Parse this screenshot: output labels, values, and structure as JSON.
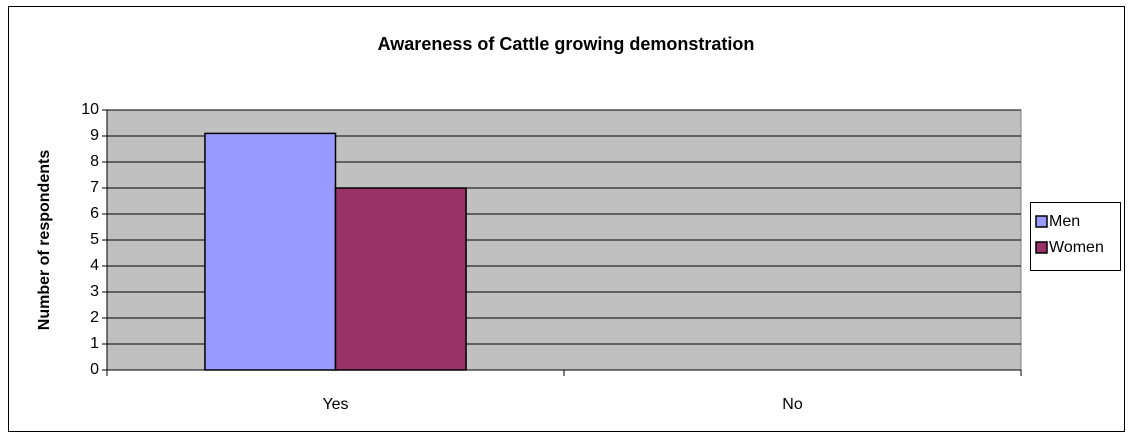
{
  "chart_data": {
    "type": "bar",
    "title": "Awareness of Cattle growing demonstration",
    "y_label": "Number of respondents",
    "categories": [
      "Yes",
      "No"
    ],
    "series": [
      {
        "name": "Men",
        "color": "#9999ff",
        "values": [
          9.1,
          0
        ]
      },
      {
        "name": "Women",
        "color": "#993366",
        "values": [
          7,
          0
        ]
      }
    ],
    "ylim": [
      0,
      10
    ],
    "yticks": [
      0,
      1,
      2,
      3,
      4,
      5,
      6,
      7,
      8,
      9,
      10
    ],
    "grid": true,
    "legend": "right"
  }
}
